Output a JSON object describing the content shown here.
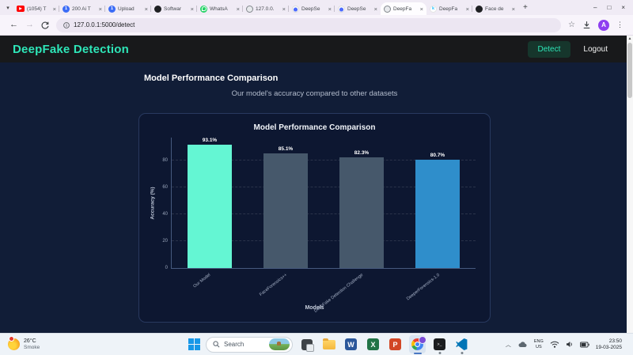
{
  "browser": {
    "tab_dropdown_glyph": "▾",
    "tab_close_glyph": "×",
    "new_tab_glyph": "+",
    "icon_glyphs": {
      "youtube": "▶",
      "pin_blue": "1",
      "kaggle": "k"
    },
    "tabs": [
      {
        "label": "(1054) T",
        "icon": "youtube"
      },
      {
        "label": "200 Ai T",
        "icon": "pin_blue"
      },
      {
        "label": "Upload",
        "icon": "pin_blue"
      },
      {
        "label": "Softwar",
        "icon": "app_dark"
      },
      {
        "label": "WhatsA",
        "icon": "whatsapp"
      },
      {
        "label": "127.0.0.",
        "icon": "globe"
      },
      {
        "label": "DeepSe",
        "icon": "deepseek"
      },
      {
        "label": "DeepSe",
        "icon": "deepseek"
      },
      {
        "label": "DeepFa",
        "icon": "globe",
        "active": true
      },
      {
        "label": "DeepFa",
        "icon": "kaggle"
      },
      {
        "label": "Face de",
        "icon": "app_dark"
      }
    ],
    "window_controls": {
      "minimize": "–",
      "maximize": "□",
      "close": "×"
    },
    "address": {
      "url": "127.0.0.1:5000/detect"
    },
    "avatar_initial": "A"
  },
  "app": {
    "title": "DeepFake Detection",
    "detect_label": "Detect",
    "logout_label": "Logout",
    "heading": "Model Performance Comparison",
    "subtitle": "Our model's accuracy compared to other datasets"
  },
  "chart_data": {
    "type": "bar",
    "title": "Model Performance Comparison",
    "categories": [
      "Our Model",
      "FaceForensics++",
      "DeepFake Detection Challenge",
      "DeeperForensics-1.0"
    ],
    "values": [
      93.1,
      85.1,
      82.3,
      80.7
    ],
    "value_labels": [
      "93.1%",
      "85.1%",
      "82.3%",
      "80.7%"
    ],
    "bar_colors": [
      "#64f6d3",
      "#46586b",
      "#46586b",
      "#2f8ecb"
    ],
    "xlabel": "Models",
    "ylabel": "Accuracy (%)",
    "yticks": [
      0,
      20,
      40,
      60,
      80
    ],
    "ylim": [
      0,
      97
    ],
    "grid": "dashed-horizontal",
    "legend_position": "none",
    "accent_color": "#64f6d3",
    "background_color": "#0d1731"
  },
  "taskbar": {
    "weather": {
      "temp": "26°C",
      "condition": "Smoke"
    },
    "search_placeholder": "Search",
    "app_glyphs": {
      "word": "W",
      "excel": "X",
      "powerpoint": "P",
      "terminal": ">_"
    },
    "apps": [
      {
        "icon": "taskview"
      },
      {
        "icon": "folder"
      },
      {
        "icon": "word"
      },
      {
        "icon": "excel"
      },
      {
        "icon": "powerpoint"
      },
      {
        "icon": "chrome",
        "active": true
      },
      {
        "icon": "terminal",
        "running": true
      },
      {
        "icon": "vscode",
        "running": true
      }
    ],
    "tray": {
      "lang_top": "ENG",
      "lang_bottom": "US",
      "time": "23:50",
      "date": "19-03-2025"
    }
  }
}
